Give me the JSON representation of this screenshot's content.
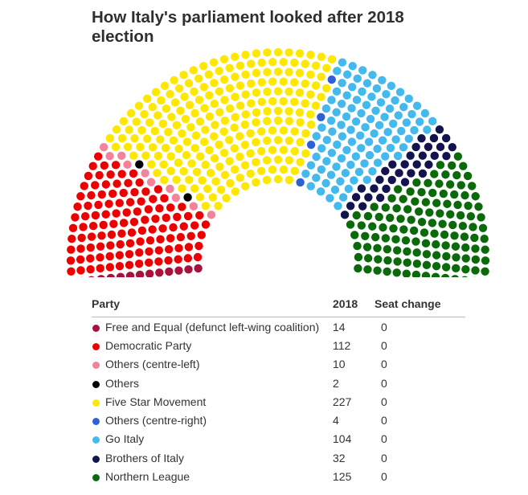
{
  "title": "How Italy's parliament looked after 2018 election",
  "chart_data": {
    "type": "hemicycle",
    "total_seats": 630,
    "columns": [
      "Party",
      "2018",
      "Seat change"
    ],
    "series": [
      {
        "name": "Free and Equal (defunct left-wing coalition)",
        "seats": 14,
        "seat_change": 0,
        "color": "#a8113c"
      },
      {
        "name": "Democratic Party",
        "seats": 112,
        "seat_change": 0,
        "color": "#ee0000"
      },
      {
        "name": "Others (centre-left)",
        "seats": 10,
        "seat_change": 0,
        "color": "#f2839a"
      },
      {
        "name": "Others",
        "seats": 2,
        "seat_change": 0,
        "color": "#000000"
      },
      {
        "name": "Five Star Movement",
        "seats": 227,
        "seat_change": 0,
        "color": "#ffe800"
      },
      {
        "name": "Others (centre-right)",
        "seats": 4,
        "seat_change": 0,
        "color": "#2c62d6"
      },
      {
        "name": "Go Italy",
        "seats": 104,
        "seat_change": 0,
        "color": "#44b9ee"
      },
      {
        "name": "Brothers of Italy",
        "seats": 32,
        "seat_change": 0,
        "color": "#13144e"
      },
      {
        "name": "Northern League",
        "seats": 125,
        "seat_change": 0,
        "color": "#0a6a0a"
      }
    ]
  }
}
